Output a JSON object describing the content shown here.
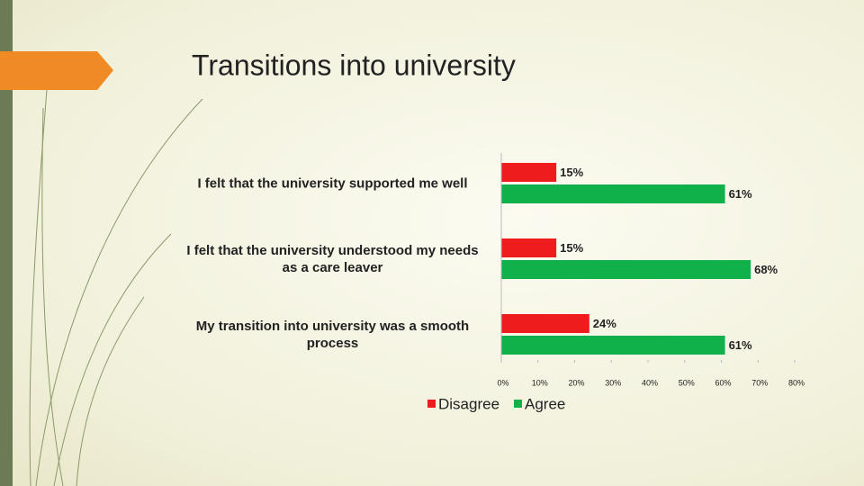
{
  "chart_data": {
    "type": "bar",
    "orientation": "horizontal",
    "title": "Transitions into university",
    "categories": [
      "I felt that the university supported me well",
      "I felt that the university understood my needs as a care leaver",
      "My transition into university was a smooth process"
    ],
    "series": [
      {
        "name": "Disagree",
        "color": "#ee1c1c",
        "values": [
          15,
          15,
          24
        ],
        "value_labels": [
          "15%",
          "15%",
          "24%"
        ]
      },
      {
        "name": "Agree",
        "color": "#10b04a",
        "values": [
          61,
          68,
          61
        ],
        "value_labels": [
          "61%",
          "68%",
          "61%"
        ]
      }
    ],
    "xlim": [
      0,
      80
    ],
    "xticks": [
      {
        "value": 0,
        "label": "0%"
      },
      {
        "value": 10,
        "label": "10%"
      },
      {
        "value": 20,
        "label": "20%"
      },
      {
        "value": 30,
        "label": "30%"
      },
      {
        "value": 40,
        "label": "40%"
      },
      {
        "value": 50,
        "label": "50%"
      },
      {
        "value": 60,
        "label": "60%"
      },
      {
        "value": 70,
        "label": "70%"
      },
      {
        "value": 80,
        "label": "80%"
      }
    ],
    "grid": false,
    "legend": "bottom"
  }
}
